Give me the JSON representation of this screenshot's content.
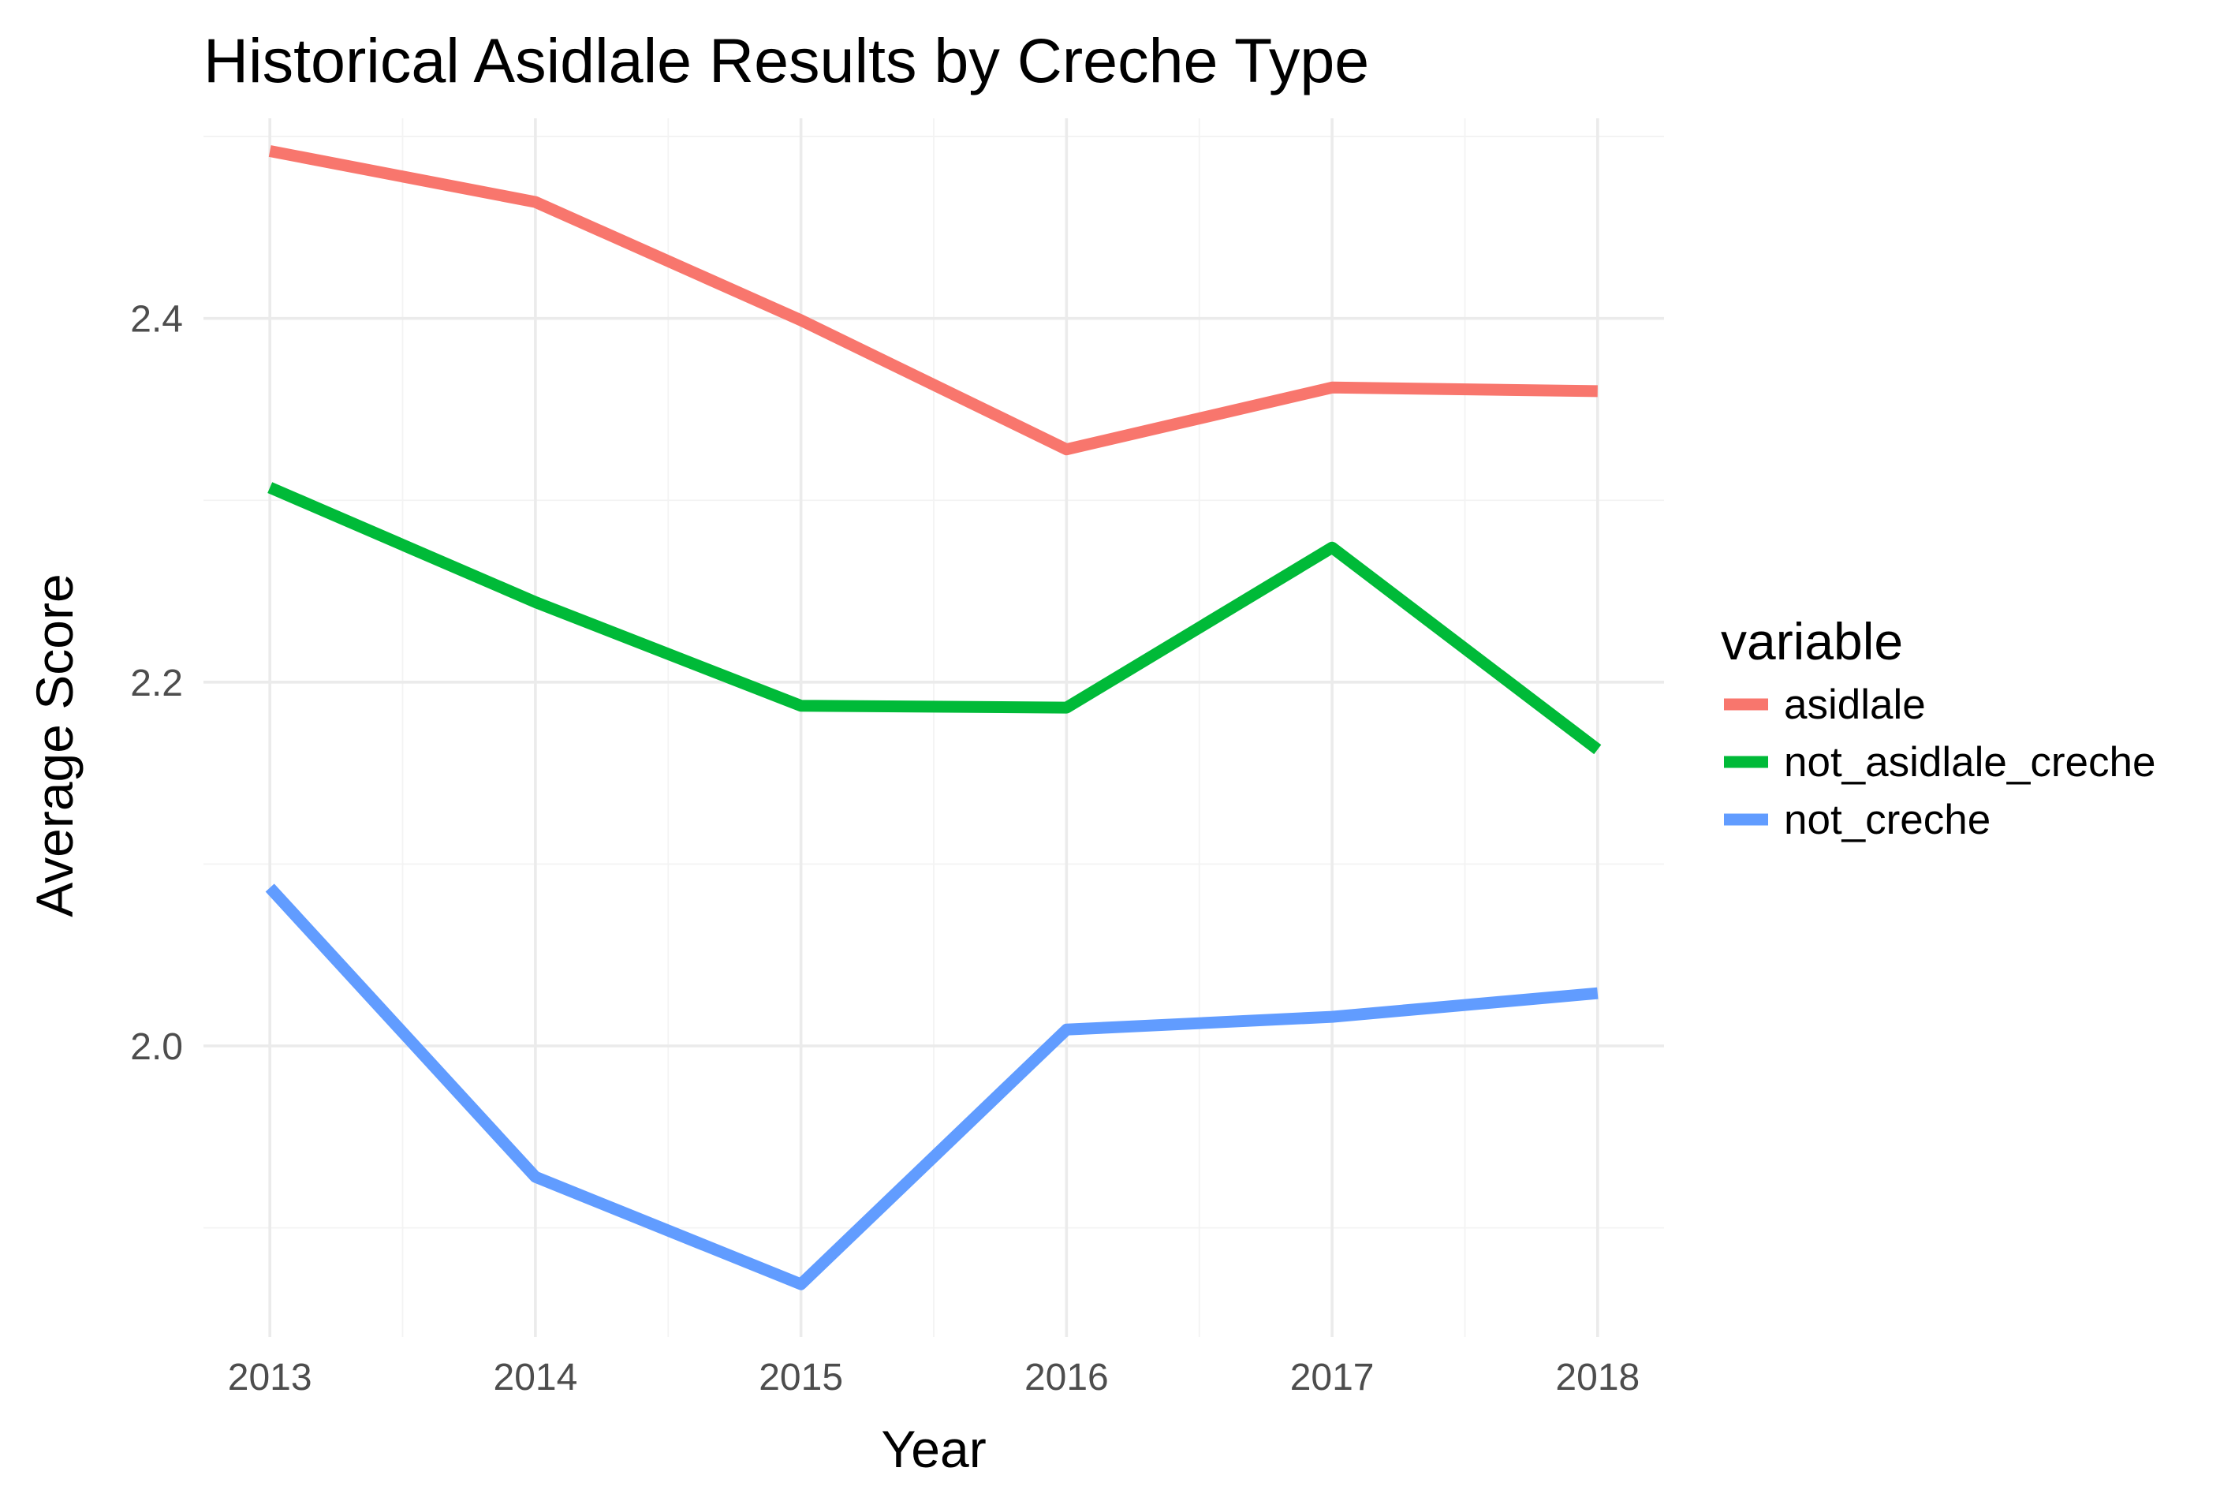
{
  "chart_data": {
    "type": "line",
    "title": "Historical Asidlale Results by Creche Type",
    "xlabel": "Year",
    "ylabel": "Average Score",
    "x": [
      2013,
      2014,
      2015,
      2016,
      2017,
      2018
    ],
    "x_tick_labels": [
      "2013",
      "2014",
      "2015",
      "2016",
      "2017",
      "2018"
    ],
    "y_ticks": [
      2.0,
      2.2,
      2.4
    ],
    "y_tick_labels": [
      "2.0",
      "2.2",
      "2.4"
    ],
    "xlim": [
      2012.75,
      2018.25
    ],
    "ylim": [
      1.84,
      2.51
    ],
    "grid": true,
    "legend": {
      "title": "variable",
      "position": "right"
    },
    "series": [
      {
        "name": "asidlale",
        "color": "#F8766D",
        "values": [
          2.492,
          2.464,
          2.399,
          2.328,
          2.362,
          2.36
        ]
      },
      {
        "name": "not_asidlale_creche",
        "color": "#00BA38",
        "values": [
          2.307,
          2.244,
          2.187,
          2.186,
          2.274,
          2.163
        ]
      },
      {
        "name": "not_creche",
        "color": "#619CFF",
        "values": [
          2.087,
          1.928,
          1.869,
          2.009,
          2.016,
          2.029
        ]
      }
    ]
  }
}
